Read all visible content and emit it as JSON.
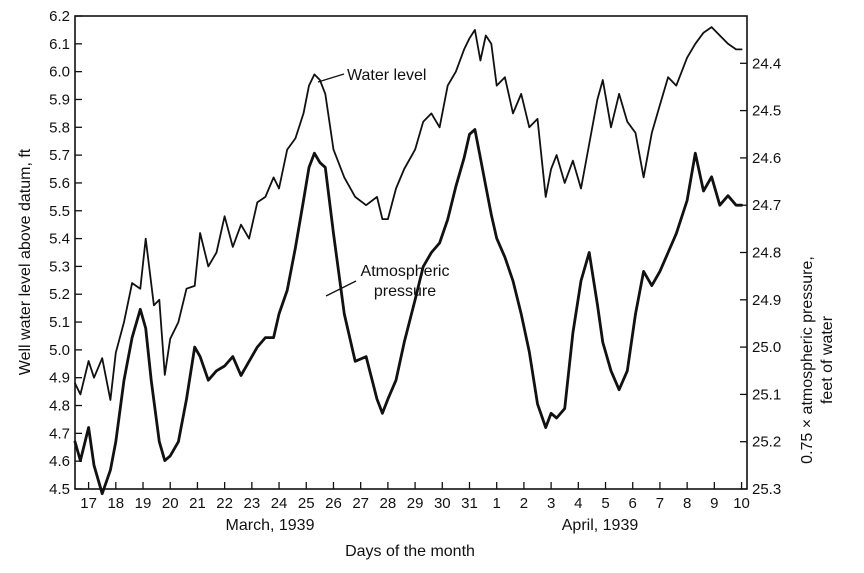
{
  "chart_data": {
    "type": "line",
    "x_labels": [
      "17",
      "18",
      "19",
      "20",
      "21",
      "22",
      "23",
      "24",
      "25",
      "26",
      "27",
      "28",
      "29",
      "30",
      "31",
      "1",
      "2",
      "3",
      "4",
      "5",
      "6",
      "7",
      "8",
      "9",
      "10"
    ],
    "month_labels": [
      "March, 1939",
      "April, 1939"
    ],
    "xlabel": "Days of the month",
    "ylabel_left": "Well water level above datum, ft",
    "ylabel_right": [
      "0.75 × atmospheric pressure,",
      "feet of water"
    ],
    "yticks_left": [
      "6.2",
      "6.1",
      "6.0",
      "5.9",
      "5.8",
      "5.7",
      "5.6",
      "5.5",
      "5.4",
      "5.3",
      "5.2",
      "5.1",
      "5.0",
      "4.9",
      "4.8",
      "4.7",
      "4.6",
      "4.5"
    ],
    "yticks_right": [
      "24.4",
      "24.5",
      "24.6",
      "24.7",
      "24.8",
      "24.9",
      "25.0",
      "25.1",
      "25.2",
      "25.3"
    ],
    "ylim_left": [
      4.5,
      6.2
    ],
    "ylim_right_inverted": [
      24.3,
      25.3
    ],
    "xlim_days": [
      16.5,
      41.2
    ],
    "grid": false,
    "annotations": [
      {
        "text": "Water level",
        "series": "Water level"
      },
      {
        "text": "Atmospheric",
        "series": "Atmospheric pressure"
      },
      {
        "text": "pressure",
        "series": "Atmospheric pressure"
      }
    ],
    "series": [
      {
        "name": "Water level",
        "axis": "left",
        "unit": "ft",
        "x": [
          16.5,
          16.7,
          17.0,
          17.2,
          17.5,
          17.8,
          18.0,
          18.3,
          18.6,
          18.9,
          19.1,
          19.4,
          19.6,
          19.8,
          20.0,
          20.3,
          20.6,
          20.9,
          21.1,
          21.4,
          21.7,
          22.0,
          22.3,
          22.6,
          22.9,
          23.2,
          23.5,
          23.8,
          24.0,
          24.3,
          24.6,
          24.9,
          25.1,
          25.3,
          25.5,
          25.7,
          26.0,
          26.4,
          26.8,
          27.2,
          27.6,
          27.8,
          28.0,
          28.3,
          28.6,
          29.0,
          29.3,
          29.6,
          29.9,
          30.2,
          30.5,
          30.8,
          31.0,
          31.2,
          31.4,
          31.6,
          31.8,
          32.0,
          32.3,
          32.6,
          32.9,
          33.2,
          33.5,
          33.8,
          34.0,
          34.2,
          34.5,
          34.8,
          35.1,
          35.4,
          35.7,
          35.9,
          36.2,
          36.5,
          36.8,
          37.1,
          37.4,
          37.7,
          38.0,
          38.3,
          38.6,
          39.0,
          39.3,
          39.6,
          39.9,
          40.2,
          40.5,
          40.8,
          41.0
        ],
        "y": [
          4.88,
          4.84,
          4.96,
          4.9,
          4.97,
          4.82,
          4.99,
          5.1,
          5.24,
          5.22,
          5.4,
          5.16,
          5.18,
          4.91,
          5.04,
          5.1,
          5.22,
          5.23,
          5.42,
          5.3,
          5.35,
          5.48,
          5.37,
          5.45,
          5.4,
          5.53,
          5.55,
          5.62,
          5.58,
          5.72,
          5.76,
          5.85,
          5.95,
          5.99,
          5.97,
          5.92,
          5.72,
          5.62,
          5.55,
          5.52,
          5.55,
          5.47,
          5.47,
          5.58,
          5.65,
          5.72,
          5.82,
          5.85,
          5.8,
          5.95,
          6.0,
          6.08,
          6.12,
          6.15,
          6.04,
          6.13,
          6.1,
          5.95,
          5.98,
          5.85,
          5.92,
          5.8,
          5.83,
          5.55,
          5.65,
          5.7,
          5.6,
          5.68,
          5.58,
          5.74,
          5.9,
          5.97,
          5.8,
          5.92,
          5.82,
          5.78,
          5.62,
          5.78,
          5.88,
          5.98,
          5.95,
          6.05,
          6.1,
          6.14,
          6.16,
          6.13,
          6.1,
          6.08,
          6.08
        ]
      },
      {
        "name": "Atmospheric pressure",
        "axis": "right",
        "unit": "0.75 × atmospheric pressure, feet of water",
        "x": [
          16.5,
          16.7,
          17.0,
          17.2,
          17.5,
          17.8,
          18.0,
          18.3,
          18.6,
          18.9,
          19.1,
          19.3,
          19.6,
          19.8,
          20.0,
          20.3,
          20.6,
          20.9,
          21.1,
          21.4,
          21.7,
          22.0,
          22.3,
          22.6,
          22.9,
          23.2,
          23.5,
          23.8,
          24.0,
          24.3,
          24.6,
          24.9,
          25.1,
          25.3,
          25.5,
          25.7,
          26.0,
          26.4,
          26.8,
          27.2,
          27.6,
          27.8,
          28.0,
          28.3,
          28.6,
          29.0,
          29.3,
          29.6,
          29.9,
          30.2,
          30.5,
          30.8,
          31.0,
          31.2,
          31.4,
          31.6,
          31.8,
          32.0,
          32.3,
          32.6,
          32.9,
          33.2,
          33.5,
          33.8,
          34.0,
          34.2,
          34.5,
          34.8,
          35.1,
          35.4,
          35.7,
          35.9,
          36.2,
          36.5,
          36.8,
          37.1,
          37.4,
          37.7,
          38.0,
          38.3,
          38.6,
          39.0,
          39.3,
          39.6,
          39.9,
          40.2,
          40.5,
          40.8,
          41.0
        ],
        "y": [
          25.2,
          25.24,
          25.17,
          25.25,
          25.31,
          25.26,
          25.2,
          25.07,
          24.98,
          24.92,
          24.96,
          25.07,
          25.2,
          25.24,
          25.23,
          25.2,
          25.11,
          25.0,
          25.02,
          25.07,
          25.05,
          25.04,
          25.02,
          25.06,
          25.03,
          25.0,
          24.98,
          24.98,
          24.93,
          24.88,
          24.79,
          24.69,
          24.62,
          24.59,
          24.61,
          24.62,
          24.76,
          24.93,
          25.03,
          25.02,
          25.11,
          25.14,
          25.11,
          25.07,
          24.99,
          24.9,
          24.83,
          24.8,
          24.78,
          24.73,
          24.66,
          24.6,
          24.55,
          24.54,
          24.6,
          24.66,
          24.72,
          24.77,
          24.81,
          24.86,
          24.93,
          25.01,
          25.12,
          25.17,
          25.14,
          25.15,
          25.13,
          24.97,
          24.86,
          24.8,
          24.91,
          24.99,
          25.05,
          25.09,
          25.05,
          24.93,
          24.84,
          24.87,
          24.84,
          24.8,
          24.76,
          24.69,
          24.59,
          24.67,
          24.64,
          24.7,
          24.68,
          24.7,
          24.7
        ]
      }
    ]
  }
}
